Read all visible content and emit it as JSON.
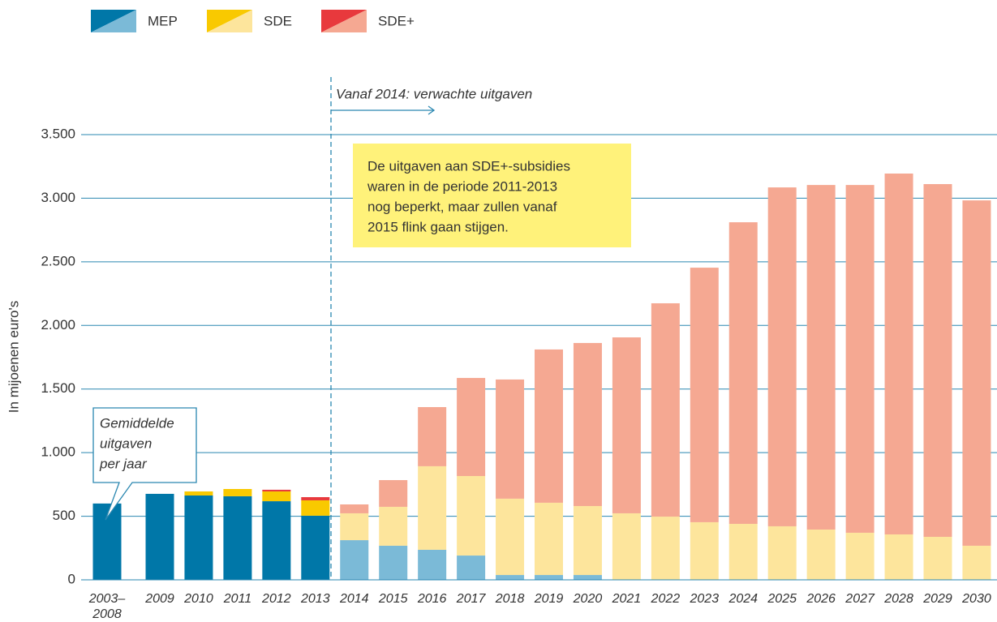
{
  "chart_data": {
    "type": "stacked_bar",
    "y_axis_label": "In mijoenen euro's",
    "categories": [
      "2003–2008",
      "2009",
      "2010",
      "2011",
      "2012",
      "2013",
      "2014",
      "2015",
      "2016",
      "2017",
      "2018",
      "2019",
      "2020",
      "2021",
      "2022",
      "2023",
      "2024",
      "2025",
      "2026",
      "2027",
      "2028",
      "2029",
      "2030"
    ],
    "projection_start": "2014",
    "series": [
      {
        "name": "MEP",
        "color": "#0077a8",
        "projected_color": "#7bbad7",
        "values": [
          600,
          676,
          663,
          657,
          618,
          504,
          312,
          268,
          236,
          191,
          38,
          38,
          38,
          0,
          0,
          0,
          0,
          0,
          0,
          0,
          0,
          0,
          0
        ]
      },
      {
        "name": "SDE",
        "color": "#f9c900",
        "projected_color": "#fde59c",
        "values": [
          0,
          0,
          32,
          57,
          77,
          121,
          211,
          306,
          657,
          625,
          600,
          568,
          542,
          523,
          497,
          453,
          440,
          421,
          395,
          370,
          357,
          338,
          268
        ]
      },
      {
        "name": "SDE+",
        "color": "#e8393d",
        "projected_color": "#f5a892",
        "values": [
          0,
          0,
          0,
          0,
          13,
          25,
          70,
          210,
          465,
          771,
          937,
          1205,
          1282,
          1383,
          1677,
          2001,
          2371,
          2664,
          2709,
          2734,
          2837,
          2773,
          2715
        ]
      }
    ],
    "ylim": [
      0,
      3500
    ],
    "yticks": [
      0,
      500,
      {
        "value": 1000,
        "label": "1.000"
      },
      {
        "value": 1500,
        "label": "1.500"
      },
      {
        "value": 2000,
        "label": "2.000"
      },
      {
        "value": 2500,
        "label": "2.500"
      },
      {
        "value": 3000,
        "label": "3.000"
      },
      {
        "value": 3500,
        "label": "3.500"
      }
    ],
    "grid": true,
    "annotations": {
      "projection": "Vanaf 2014: verwachte uitgaven",
      "callout": [
        "De uitgaven aan SDE+-subsidies",
        "waren in de periode 2011-2013",
        "nog beperkt, maar zullen vanaf",
        "2015 flink gaan stijgen."
      ],
      "average": [
        "Gemiddelde",
        "uitgaven",
        "per jaar"
      ]
    }
  }
}
